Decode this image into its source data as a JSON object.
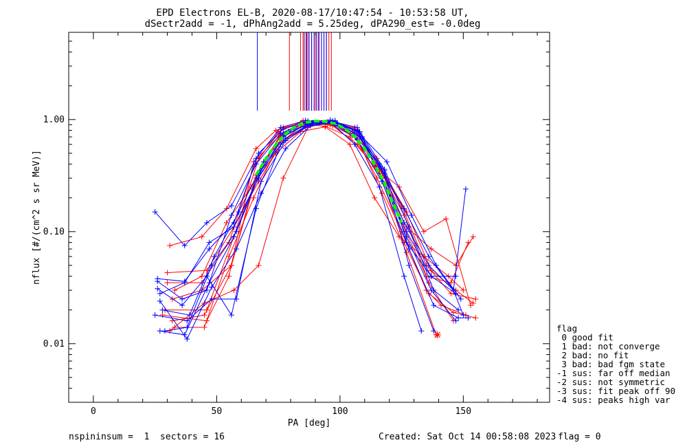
{
  "chart_data": {
    "type": "line",
    "y_scale": "log",
    "title_line1": "EPD Electrons EL-B, 2020-08-17/10:47:54 - 10:53:58 UT,",
    "title_line2": "dSectr2add = -1, dPhAng2add = 5.25deg, dPA290_est=  -0.0deg",
    "xlabel": "PA [deg]",
    "ylabel": "nflux [#/(cm^2 s sr MeV)]",
    "xlim": [
      -10,
      185
    ],
    "ylim": [
      0.003,
      6.0
    ],
    "x_ticks": [
      0,
      50,
      100,
      150
    ],
    "x_tick_labels": [
      "0",
      "50",
      "100",
      "150"
    ],
    "y_ticks": [
      0.01,
      0.1,
      1.0
    ],
    "y_tick_labels": [
      "0.01",
      "0.10",
      "1.00"
    ],
    "grid": false,
    "legend_position": "right",
    "colors": {
      "red": "#ff0000",
      "blue": "#0000ff",
      "green": "#00ff00",
      "axis": "#000000"
    },
    "vertical_lines": {
      "red_x": [
        79.5,
        84.0,
        85.0,
        86.2,
        87.0,
        88.5,
        90.0,
        91.2,
        92.5,
        93.5,
        94.5,
        95.5,
        96.5
      ],
      "red_top": 6.0,
      "red_bottom": 1.2,
      "blue_x": [
        66.5,
        85.5,
        86.5,
        87.5,
        88.5,
        89.5,
        90.5,
        91.5,
        92.5,
        93.5,
        94.5
      ],
      "blue_top": 6.0,
      "blue_bottom": 1.2
    },
    "series": [
      {
        "color": "red",
        "x": [
          30,
          44,
          55,
          65,
          75,
          85,
          95,
          105,
          115,
          125,
          135,
          145,
          155
        ],
        "y": [
          0.035,
          0.035,
          0.08,
          0.38,
          0.78,
          0.97,
          0.93,
          0.72,
          0.4,
          0.17,
          0.05,
          0.028,
          0.025
        ]
      },
      {
        "color": "red",
        "x": [
          32,
          45,
          56,
          66,
          76,
          86,
          96,
          106,
          116,
          126,
          136,
          146
        ],
        "y": [
          0.016,
          0.018,
          0.05,
          0.3,
          0.72,
          0.93,
          0.96,
          0.8,
          0.36,
          0.14,
          0.035,
          0.016
        ]
      },
      {
        "color": "red",
        "x": [
          29,
          46,
          57,
          67,
          77,
          87,
          97,
          107,
          117,
          127,
          137,
          147,
          154
        ],
        "y": [
          0.02,
          0.02,
          0.09,
          0.45,
          0.85,
          0.96,
          0.88,
          0.6,
          0.3,
          0.11,
          0.07,
          0.05,
          0.09
        ]
      },
      {
        "color": "red",
        "x": [
          31,
          44,
          54,
          66,
          74,
          84,
          94,
          104,
          114,
          124,
          134,
          143,
          153
        ],
        "y": [
          0.075,
          0.09,
          0.16,
          0.55,
          0.8,
          0.92,
          0.87,
          0.7,
          0.38,
          0.25,
          0.1,
          0.13,
          0.022
        ]
      },
      {
        "color": "red",
        "x": [
          33,
          45,
          55,
          65,
          75,
          85,
          95,
          105,
          115,
          125,
          135,
          141,
          151
        ],
        "y": [
          0.014,
          0.014,
          0.06,
          0.2,
          0.6,
          0.9,
          0.94,
          0.78,
          0.3,
          0.1,
          0.03,
          0.022,
          0.018
        ]
      },
      {
        "color": "red",
        "x": [
          30,
          46,
          57,
          67,
          77,
          87,
          97,
          107,
          117,
          127,
          139
        ],
        "y": [
          0.043,
          0.045,
          0.11,
          0.28,
          0.65,
          0.88,
          0.92,
          0.68,
          0.22,
          0.065,
          0.012
        ]
      },
      {
        "color": "red",
        "x": [
          32,
          44,
          56,
          66,
          76,
          86,
          96,
          106,
          116,
          126,
          136,
          146,
          155
        ],
        "y": [
          0.025,
          0.03,
          0.05,
          0.32,
          0.74,
          0.94,
          0.9,
          0.85,
          0.33,
          0.08,
          0.028,
          0.019,
          0.017
        ]
      },
      {
        "color": "red",
        "x": [
          28,
          46,
          55,
          65,
          75,
          85,
          95,
          105,
          115,
          125,
          135,
          145,
          152
        ],
        "y": [
          0.018,
          0.016,
          0.04,
          0.42,
          0.7,
          0.98,
          0.95,
          0.75,
          0.45,
          0.12,
          0.04,
          0.035,
          0.08
        ]
      },
      {
        "color": "red",
        "x": [
          31,
          45,
          57,
          67,
          77,
          87,
          97,
          107,
          117,
          127,
          137,
          147,
          154
        ],
        "y": [
          0.013,
          0.023,
          0.03,
          0.05,
          0.3,
          0.85,
          0.97,
          0.82,
          0.36,
          0.15,
          0.045,
          0.03,
          0.023
        ]
      },
      {
        "color": "red",
        "x": [
          33,
          44,
          54,
          64,
          74,
          84,
          94,
          104,
          114,
          124,
          134,
          144,
          150
        ],
        "y": [
          0.03,
          0.04,
          0.12,
          0.25,
          0.5,
          0.78,
          0.86,
          0.6,
          0.2,
          0.09,
          0.06,
          0.04,
          0.03
        ]
      },
      {
        "color": "blue",
        "x": [
          25,
          37,
          46,
          56,
          66,
          76,
          86,
          96,
          106,
          116,
          126,
          136,
          146,
          151
        ],
        "y": [
          0.15,
          0.075,
          0.12,
          0.17,
          0.45,
          0.85,
          0.98,
          0.97,
          0.8,
          0.38,
          0.16,
          0.06,
          0.03,
          0.24
        ]
      },
      {
        "color": "blue",
        "x": [
          26,
          36,
          46,
          56,
          66,
          76,
          86,
          96,
          106,
          116,
          126,
          136,
          146,
          150
        ],
        "y": [
          0.036,
          0.025,
          0.03,
          0.14,
          0.4,
          0.75,
          0.95,
          0.99,
          0.72,
          0.4,
          0.12,
          0.05,
          0.03,
          0.018
        ]
      },
      {
        "color": "blue",
        "x": [
          27,
          37,
          47,
          57,
          67,
          77,
          87,
          97,
          107,
          117,
          127,
          137,
          147
        ],
        "y": [
          0.013,
          0.012,
          0.035,
          0.09,
          0.33,
          0.7,
          0.92,
          0.96,
          0.85,
          0.3,
          0.09,
          0.03,
          0.016
        ]
      },
      {
        "color": "blue",
        "x": [
          25,
          38,
          48,
          58,
          68,
          78,
          88,
          98,
          108,
          118,
          128,
          138,
          148,
          152
        ],
        "y": [
          0.018,
          0.016,
          0.025,
          0.025,
          0.28,
          0.65,
          0.9,
          0.98,
          0.7,
          0.35,
          0.07,
          0.022,
          0.017,
          0.017
        ]
      },
      {
        "color": "blue",
        "x": [
          26,
          37,
          47,
          57,
          67,
          77,
          87,
          97,
          107,
          117,
          127,
          137,
          147
        ],
        "y": [
          0.038,
          0.036,
          0.07,
          0.12,
          0.5,
          0.82,
          0.97,
          0.93,
          0.66,
          0.28,
          0.08,
          0.04,
          0.04
        ]
      },
      {
        "color": "blue",
        "x": [
          27,
          38,
          48,
          58,
          68,
          78,
          88,
          98,
          108,
          118,
          128,
          138
        ],
        "y": [
          0.024,
          0.011,
          0.032,
          0.07,
          0.22,
          0.55,
          0.88,
          0.94,
          0.76,
          0.33,
          0.05,
          0.013
        ]
      },
      {
        "color": "blue",
        "x": [
          26,
          36,
          46,
          56,
          66,
          76,
          86,
          96,
          106,
          116,
          126,
          133
        ],
        "y": [
          0.031,
          0.022,
          0.04,
          0.018,
          0.16,
          0.6,
          0.86,
          0.96,
          0.6,
          0.25,
          0.04,
          0.013
        ]
      },
      {
        "color": "blue",
        "x": [
          28,
          39,
          49,
          59,
          69,
          79,
          89,
          99,
          109,
          119,
          129,
          139,
          149
        ],
        "y": [
          0.02,
          0.018,
          0.06,
          0.15,
          0.42,
          0.78,
          0.94,
          0.92,
          0.7,
          0.42,
          0.14,
          0.05,
          0.025
        ]
      },
      {
        "color": "blue",
        "x": [
          29,
          38,
          48,
          58,
          68,
          78,
          88,
          98,
          108,
          118,
          128,
          138,
          148
        ],
        "y": [
          0.013,
          0.014,
          0.05,
          0.1,
          0.35,
          0.68,
          0.93,
          0.95,
          0.78,
          0.36,
          0.11,
          0.03,
          0.02
        ]
      },
      {
        "color": "blue",
        "x": [
          27,
          37,
          47,
          57,
          67,
          77,
          87,
          97,
          107,
          117,
          127,
          137,
          147
        ],
        "y": [
          0.028,
          0.035,
          0.08,
          0.11,
          0.3,
          0.72,
          0.91,
          0.97,
          0.8,
          0.3,
          0.1,
          0.04,
          0.028
        ]
      },
      {
        "color": "green",
        "dashed": true,
        "x": [
          66,
          70,
          74,
          78,
          82,
          86,
          90,
          94,
          98,
          102,
          106,
          110,
          114,
          118,
          122,
          125
        ],
        "y": [
          0.32,
          0.45,
          0.6,
          0.75,
          0.87,
          0.94,
          0.97,
          0.96,
          0.92,
          0.83,
          0.7,
          0.55,
          0.4,
          0.27,
          0.17,
          0.12
        ]
      }
    ],
    "extra_markers": [
      {
        "color": "red",
        "x": 139.5,
        "y": 0.012,
        "symbol": "asterisk"
      }
    ]
  },
  "legend": {
    "title": "flag",
    "entries": [
      " 0 good fit",
      " 1 bad: not converge",
      " 2 bad: no fit",
      " 3 bad: bad fgm state",
      "-1 sus: far off median",
      "-2 sus: not symmetric",
      "-3 sus: fit peak off 90",
      "-4 sus: peaks high var"
    ]
  },
  "footer": {
    "left": "nspininsum =  1  sectors = 16",
    "created": "Created: Sat Oct 14 00:58:08 2023",
    "flag": "flag = 0"
  }
}
